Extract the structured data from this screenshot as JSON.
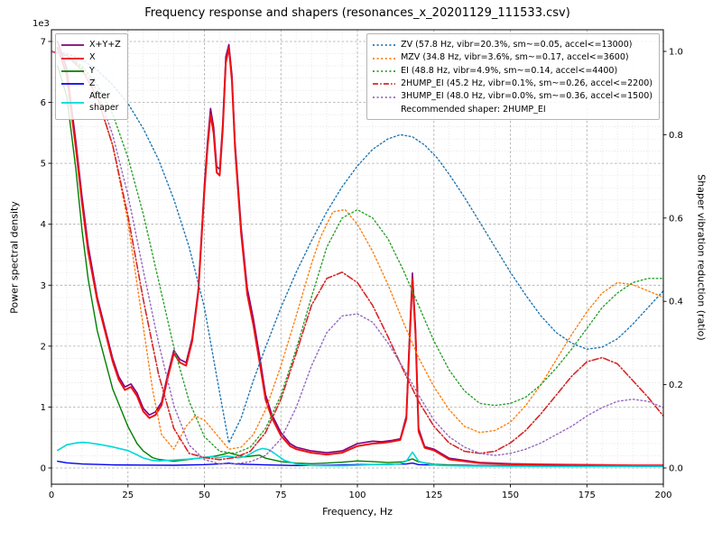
{
  "chart_data": {
    "type": "line",
    "title": "Frequency response and shapers (resonances_x_20201129_111533.csv)",
    "xlabel": "Frequency, Hz",
    "ylabel_left": "Power spectral density",
    "ylabel_right": "Shaper vibration reduction (ratio)",
    "xlim": [
      0,
      200
    ],
    "ylim_left": [
      0,
      7000
    ],
    "ylim_right": [
      0,
      1
    ],
    "grid": "both",
    "series": [
      {
        "name": "X+Y+Z",
        "axis": "left",
        "color": "#800080",
        "style": "solid",
        "width": 1.6,
        "x": [
          2,
          5,
          8,
          10,
          12,
          15,
          18,
          20,
          22,
          24,
          26,
          28,
          30,
          32,
          34,
          36,
          38,
          40,
          42,
          44,
          46,
          48,
          50,
          51,
          52,
          53,
          54,
          55,
          56,
          57,
          58,
          59,
          60,
          62,
          64,
          66,
          68,
          70,
          72,
          75,
          78,
          80,
          85,
          90,
          95,
          100,
          105,
          108,
          111,
          114,
          116,
          117,
          118,
          119,
          120,
          122,
          125,
          130,
          140,
          150,
          160,
          170,
          180,
          190,
          200
        ],
        "y": [
          7000,
          6550,
          5350,
          4450,
          3650,
          2800,
          2200,
          1800,
          1500,
          1330,
          1380,
          1230,
          980,
          870,
          920,
          1080,
          1530,
          1930,
          1780,
          1730,
          2130,
          2930,
          4650,
          5350,
          5900,
          5600,
          4950,
          4900,
          5650,
          6750,
          6950,
          6450,
          5350,
          3950,
          2950,
          2450,
          1850,
          1200,
          880,
          580,
          400,
          340,
          280,
          250,
          280,
          400,
          440,
          430,
          450,
          480,
          850,
          2100,
          3200,
          2300,
          650,
          350,
          310,
          160,
          90,
          70,
          60,
          55,
          50,
          45,
          45
        ]
      },
      {
        "name": "X",
        "axis": "left",
        "color": "#ee1212",
        "style": "solid",
        "width": 2.0,
        "x": [
          2,
          5,
          8,
          10,
          12,
          15,
          18,
          20,
          22,
          24,
          26,
          28,
          30,
          32,
          34,
          36,
          38,
          40,
          42,
          44,
          46,
          48,
          50,
          51,
          52,
          53,
          54,
          55,
          56,
          57,
          58,
          59,
          60,
          62,
          64,
          66,
          68,
          70,
          72,
          75,
          78,
          80,
          85,
          90,
          95,
          100,
          105,
          108,
          111,
          114,
          116,
          117,
          118,
          119,
          120,
          122,
          125,
          130,
          140,
          150,
          160,
          170,
          180,
          190,
          200
        ],
        "y": [
          6900,
          6450,
          5250,
          4350,
          3550,
          2750,
          2150,
          1750,
          1450,
          1280,
          1330,
          1180,
          930,
          820,
          870,
          1030,
          1480,
          1880,
          1730,
          1680,
          2080,
          2880,
          4550,
          5250,
          5800,
          5500,
          4850,
          4800,
          5550,
          6650,
          6900,
          6350,
          5250,
          3850,
          2850,
          2350,
          1750,
          1120,
          830,
          530,
          360,
          310,
          250,
          220,
          250,
          360,
          400,
          410,
          430,
          460,
          800,
          2000,
          3100,
          2200,
          600,
          330,
          290,
          140,
          80,
          60,
          50,
          45,
          45,
          40,
          40
        ]
      },
      {
        "name": "Y",
        "axis": "left",
        "color": "#008000",
        "style": "solid",
        "width": 1.4,
        "x": [
          2,
          5,
          8,
          10,
          12,
          15,
          20,
          25,
          28,
          30,
          33,
          35,
          40,
          45,
          50,
          53,
          56,
          58,
          60,
          63,
          66,
          68,
          70,
          75,
          80,
          85,
          90,
          95,
          100,
          105,
          110,
          115,
          118,
          120,
          125,
          130,
          140,
          150,
          160,
          170,
          180,
          190,
          200
        ],
        "y": [
          6600,
          6100,
          4900,
          3900,
          3100,
          2250,
          1300,
          680,
          400,
          280,
          170,
          140,
          110,
          140,
          175,
          190,
          220,
          250,
          220,
          180,
          200,
          210,
          160,
          105,
          80,
          70,
          80,
          95,
          115,
          105,
          90,
          100,
          150,
          100,
          60,
          50,
          40,
          35,
          30,
          30,
          30,
          30,
          30
        ]
      },
      {
        "name": "Z",
        "axis": "left",
        "color": "#0000ee",
        "style": "solid",
        "width": 1.4,
        "x": [
          2,
          5,
          10,
          20,
          30,
          40,
          50,
          56,
          58,
          60,
          70,
          80,
          90,
          100,
          110,
          116,
          118,
          120,
          130,
          140,
          150,
          160,
          170,
          180,
          190,
          200
        ],
        "y": [
          110,
          85,
          65,
          50,
          48,
          45,
          55,
          70,
          80,
          65,
          50,
          40,
          45,
          55,
          60,
          65,
          80,
          55,
          40,
          38,
          35,
          32,
          30,
          30,
          30,
          30
        ]
      },
      {
        "name": "After shaper",
        "axis": "left",
        "color": "#00d8d8",
        "style": "solid",
        "width": 1.6,
        "x": [
          2,
          5,
          8,
          10,
          12,
          15,
          18,
          20,
          25,
          28,
          30,
          33,
          35,
          40,
          45,
          48,
          50,
          52,
          55,
          57,
          59,
          61,
          63,
          65,
          67,
          69,
          71,
          73,
          76,
          80,
          85,
          90,
          95,
          100,
          105,
          110,
          114,
          116,
          118,
          120,
          124,
          128,
          135,
          145,
          155,
          165,
          175,
          185,
          195,
          200
        ],
        "y": [
          290,
          380,
          410,
          420,
          415,
          390,
          365,
          345,
          285,
          215,
          165,
          125,
          115,
          130,
          145,
          160,
          170,
          185,
          170,
          195,
          185,
          165,
          185,
          230,
          290,
          320,
          300,
          235,
          130,
          65,
          40,
          35,
          35,
          45,
          55,
          55,
          70,
          110,
          260,
          110,
          55,
          40,
          32,
          30,
          28,
          25,
          25,
          28,
          30,
          30
        ]
      },
      {
        "name": "ZV",
        "axis": "right",
        "color": "#1f77b4",
        "style": "dotted",
        "width": 1.4,
        "x": [
          0,
          5,
          10,
          15,
          20,
          25,
          30,
          35,
          40,
          45,
          50,
          54,
          58,
          62,
          66,
          70,
          75,
          80,
          85,
          90,
          95,
          100,
          105,
          110,
          114,
          118,
          122,
          126,
          130,
          135,
          140,
          145,
          150,
          155,
          160,
          165,
          170,
          175,
          180,
          185,
          190,
          195,
          200
        ],
        "y": [
          1.0,
          0.995,
          0.98,
          0.955,
          0.92,
          0.875,
          0.815,
          0.74,
          0.645,
          0.53,
          0.385,
          0.22,
          0.06,
          0.12,
          0.21,
          0.29,
          0.385,
          0.47,
          0.545,
          0.615,
          0.675,
          0.725,
          0.765,
          0.79,
          0.8,
          0.795,
          0.775,
          0.745,
          0.705,
          0.65,
          0.59,
          0.53,
          0.47,
          0.415,
          0.365,
          0.325,
          0.3,
          0.285,
          0.29,
          0.31,
          0.345,
          0.385,
          0.425
        ]
      },
      {
        "name": "MZV",
        "axis": "right",
        "color": "#ff7f0e",
        "style": "dotted",
        "width": 1.4,
        "x": [
          0,
          5,
          10,
          15,
          20,
          25,
          30,
          33,
          36,
          40,
          44,
          47,
          50,
          54,
          58,
          62,
          66,
          70,
          75,
          80,
          85,
          88,
          92,
          96,
          100,
          105,
          110,
          115,
          120,
          125,
          130,
          135,
          140,
          145,
          150,
          155,
          160,
          165,
          170,
          175,
          180,
          185,
          190,
          195,
          200
        ],
        "y": [
          1.0,
          0.99,
          0.955,
          0.89,
          0.775,
          0.59,
          0.34,
          0.19,
          0.08,
          0.045,
          0.1,
          0.125,
          0.115,
          0.08,
          0.045,
          0.05,
          0.08,
          0.14,
          0.245,
          0.365,
          0.49,
          0.555,
          0.615,
          0.62,
          0.585,
          0.52,
          0.44,
          0.35,
          0.265,
          0.195,
          0.14,
          0.1,
          0.085,
          0.09,
          0.11,
          0.15,
          0.2,
          0.26,
          0.32,
          0.375,
          0.42,
          0.445,
          0.44,
          0.425,
          0.41
        ]
      },
      {
        "name": "EI",
        "axis": "right",
        "color": "#2ca02c",
        "style": "dotted",
        "width": 1.4,
        "x": [
          0,
          5,
          10,
          15,
          20,
          25,
          30,
          35,
          40,
          45,
          50,
          55,
          60,
          65,
          70,
          75,
          80,
          85,
          90,
          95,
          100,
          105,
          110,
          115,
          120,
          125,
          130,
          135,
          140,
          145,
          150,
          155,
          160,
          165,
          170,
          175,
          180,
          185,
          190,
          195,
          200
        ],
        "y": [
          1.0,
          0.99,
          0.965,
          0.92,
          0.85,
          0.745,
          0.61,
          0.45,
          0.29,
          0.16,
          0.075,
          0.04,
          0.035,
          0.05,
          0.095,
          0.175,
          0.285,
          0.41,
          0.53,
          0.6,
          0.62,
          0.6,
          0.55,
          0.475,
          0.39,
          0.305,
          0.235,
          0.185,
          0.155,
          0.15,
          0.155,
          0.17,
          0.2,
          0.24,
          0.285,
          0.335,
          0.385,
          0.42,
          0.445,
          0.455,
          0.455
        ]
      },
      {
        "name": "2HUMP_EI",
        "axis": "right",
        "color": "#d62728",
        "style": "dashdot",
        "width": 1.6,
        "x": [
          0,
          5,
          10,
          15,
          20,
          25,
          30,
          35,
          40,
          45,
          50,
          55,
          60,
          65,
          70,
          75,
          80,
          85,
          90,
          95,
          100,
          105,
          110,
          115,
          120,
          125,
          130,
          135,
          140,
          145,
          150,
          155,
          160,
          165,
          170,
          175,
          180,
          185,
          190,
          195,
          200
        ],
        "y": [
          1.0,
          0.99,
          0.955,
          0.89,
          0.775,
          0.605,
          0.405,
          0.225,
          0.095,
          0.035,
          0.025,
          0.02,
          0.025,
          0.04,
          0.085,
          0.165,
          0.275,
          0.39,
          0.455,
          0.47,
          0.445,
          0.39,
          0.315,
          0.235,
          0.16,
          0.1,
          0.06,
          0.04,
          0.035,
          0.04,
          0.06,
          0.09,
          0.13,
          0.175,
          0.22,
          0.255,
          0.265,
          0.25,
          0.21,
          0.17,
          0.125
        ]
      },
      {
        "name": "3HUMP_EI",
        "axis": "right",
        "color": "#9467bd",
        "style": "dotted",
        "width": 1.4,
        "x": [
          0,
          5,
          10,
          15,
          20,
          25,
          30,
          35,
          40,
          45,
          50,
          55,
          60,
          65,
          70,
          75,
          80,
          85,
          90,
          95,
          100,
          105,
          110,
          115,
          120,
          125,
          130,
          135,
          140,
          145,
          150,
          155,
          160,
          165,
          170,
          175,
          180,
          185,
          190,
          195,
          200
        ],
        "y": [
          1.0,
          0.99,
          0.96,
          0.905,
          0.8,
          0.655,
          0.475,
          0.3,
          0.15,
          0.055,
          0.02,
          0.01,
          0.01,
          0.015,
          0.03,
          0.07,
          0.145,
          0.245,
          0.325,
          0.365,
          0.37,
          0.35,
          0.3,
          0.24,
          0.175,
          0.115,
          0.075,
          0.05,
          0.035,
          0.03,
          0.035,
          0.045,
          0.06,
          0.08,
          0.1,
          0.125,
          0.145,
          0.16,
          0.165,
          0.16,
          0.145
        ]
      }
    ]
  },
  "axes": {
    "x": {
      "label": "Frequency, Hz",
      "ticks": [
        0,
        25,
        50,
        75,
        100,
        125,
        150,
        175,
        200
      ],
      "tick_labels": [
        "0",
        "25",
        "50",
        "75",
        "100",
        "125",
        "150",
        "175",
        "200"
      ]
    },
    "y_left": {
      "label": "Power spectral density",
      "offset_label": "1e3",
      "ticks": [
        0,
        1,
        2,
        3,
        4,
        5,
        6,
        7
      ],
      "tick_labels": [
        "0",
        "1",
        "2",
        "3",
        "4",
        "5",
        "6",
        "7"
      ]
    },
    "y_right": {
      "label": "Shaper vibration reduction (ratio)",
      "ticks": [
        0,
        0.2,
        0.4,
        0.6,
        0.8,
        1.0
      ],
      "tick_labels": [
        "0.0",
        "0.2",
        "0.4",
        "0.6",
        "0.8",
        "1.0"
      ]
    }
  },
  "legend_psd": {
    "entries": [
      {
        "label": "X+Y+Z",
        "color": "#800080",
        "style": "solid"
      },
      {
        "label": "X",
        "color": "#ee1212",
        "style": "solid"
      },
      {
        "label": "Y",
        "color": "#008000",
        "style": "solid"
      },
      {
        "label": "Z",
        "color": "#0000ee",
        "style": "solid"
      },
      {
        "label": "After\nshaper",
        "color": "#00d8d8",
        "style": "solid"
      }
    ]
  },
  "legend_shapers": {
    "entries": [
      {
        "label": "ZV (57.8 Hz, vibr=20.3%, sm~=0.05, accel<=13000)",
        "color": "#1f77b4",
        "style": "dotted"
      },
      {
        "label": "MZV (34.8 Hz, vibr=3.6%, sm~=0.17, accel<=3600)",
        "color": "#ff7f0e",
        "style": "dotted"
      },
      {
        "label": "EI (48.8 Hz, vibr=4.9%, sm~=0.14, accel<=4400)",
        "color": "#2ca02c",
        "style": "dotted"
      },
      {
        "label": "2HUMP_EI (45.2 Hz, vibr=0.1%, sm~=0.26, accel<=2200)",
        "color": "#d62728",
        "style": "dashdot"
      },
      {
        "label": "3HUMP_EI (48.0 Hz, vibr=0.0%, sm~=0.36, accel<=1500)",
        "color": "#9467bd",
        "style": "dotted"
      }
    ],
    "note": "Recommended shaper: 2HUMP_EI"
  }
}
